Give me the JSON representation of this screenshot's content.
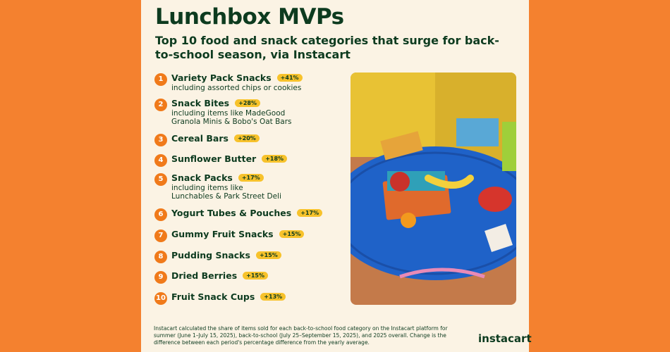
{
  "header": {
    "title": "Lunchbox MVPs",
    "subtitle": "Top 10 food and snack categories that surge for back-to-school season, via Instacart"
  },
  "items": [
    {
      "rank": "1",
      "name": "Variety Pack Snacks",
      "change": "+41%",
      "description_lines": [
        "including assorted chips or cookies"
      ]
    },
    {
      "rank": "2",
      "name": "Snack Bites",
      "change": "+28%",
      "description_lines": [
        "including items like MadeGood",
        "Granola Minis & Bobo's Oat Bars"
      ]
    },
    {
      "rank": "3",
      "name": "Cereal Bars",
      "change": "+20%",
      "description_lines": []
    },
    {
      "rank": "4",
      "name": "Sunflower Butter",
      "change": "+18%",
      "description_lines": []
    },
    {
      "rank": "5",
      "name": "Snack Packs",
      "change": "+17%",
      "description_lines": [
        "including items like",
        "Lunchables & Park Street Deli"
      ]
    },
    {
      "rank": "6",
      "name": "Yogurt Tubes & Pouches",
      "change": "+17%",
      "description_lines": []
    },
    {
      "rank": "7",
      "name": "Gummy Fruit Snacks",
      "change": "+15%",
      "description_lines": []
    },
    {
      "rank": "8",
      "name": "Pudding Snacks",
      "change": "+15%",
      "description_lines": []
    },
    {
      "rank": "9",
      "name": "Dried Berries",
      "change": "+15%",
      "description_lines": []
    },
    {
      "rank": "10",
      "name": "Fruit Snack Cups",
      "change": "+13%",
      "description_lines": []
    }
  ],
  "footnote": "Instacart calculated the share of items sold for each back-to-school food category on the Instacart platform for summer (June 1–July 15, 2025), back-to-school (July 25–September 15, 2025), and 2025 overall. Change is the difference between each period's percentage difference from the yearly average.",
  "brand": "instacart"
}
